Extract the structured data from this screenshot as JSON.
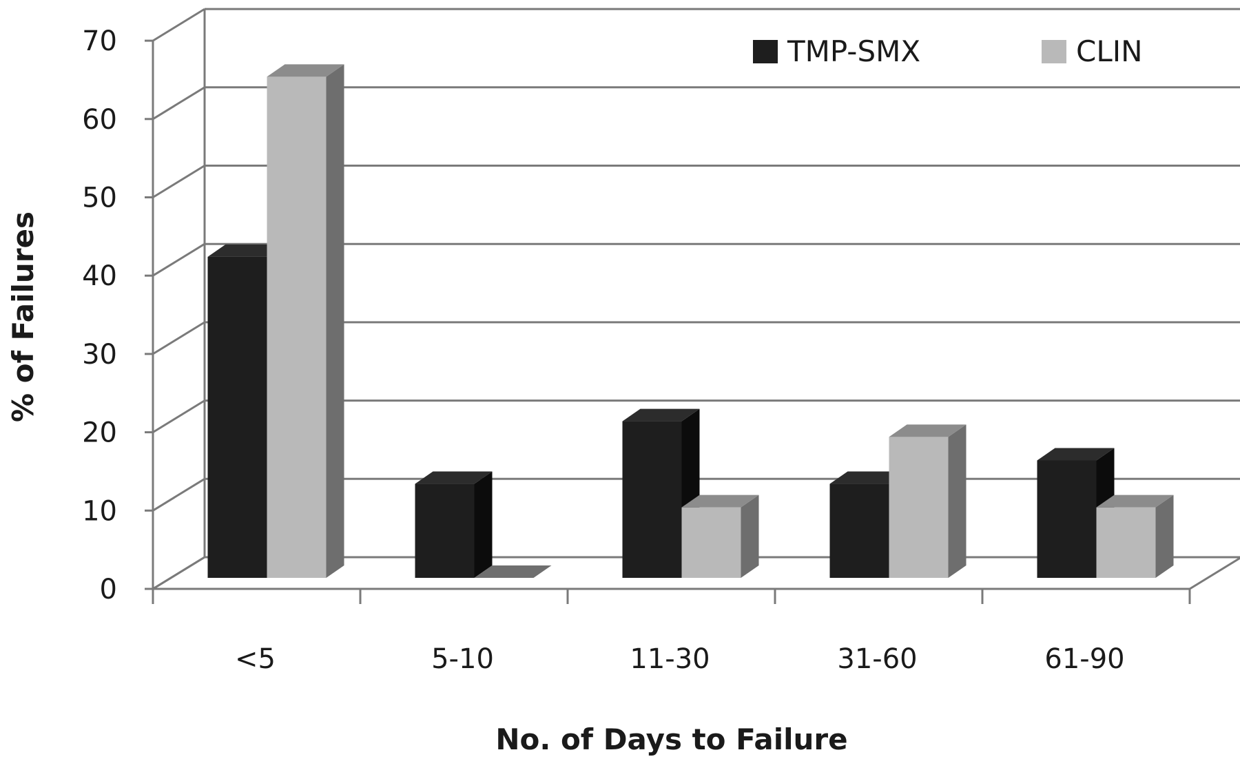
{
  "chart_data": {
    "type": "bar",
    "style": "3d-clustered-column",
    "title": "",
    "xlabel": "No. of Days to Failure",
    "ylabel": "% of Failures",
    "categories": [
      "<5",
      "5-10",
      "11-30",
      "31-60",
      "61-90"
    ],
    "series": [
      {
        "name": "TMP-SMX",
        "color": "#1e1e1e",
        "values": [
          41,
          12,
          20,
          12,
          15
        ]
      },
      {
        "name": "CLIN",
        "color": "#b9b9b9",
        "values": [
          64,
          0,
          9,
          18,
          9
        ]
      }
    ],
    "ylim": [
      0,
      70
    ],
    "yticks": [
      0,
      10,
      20,
      30,
      40,
      50,
      60,
      70
    ],
    "grid": true,
    "legend_position": "top-right"
  }
}
